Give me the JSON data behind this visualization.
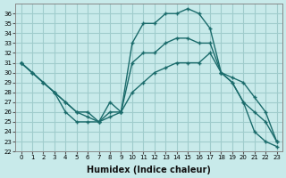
{
  "xlabel": "Humidex (Indice chaleur)",
  "bg_color": "#c8eaea",
  "grid_color": "#a0cccc",
  "line_color": "#1a6b6b",
  "xlim": [
    -0.5,
    23.5
  ],
  "ylim": [
    22,
    37
  ],
  "xticks": [
    0,
    1,
    2,
    3,
    4,
    5,
    6,
    7,
    8,
    9,
    10,
    11,
    12,
    13,
    14,
    15,
    16,
    17,
    18,
    19,
    20,
    21,
    22,
    23
  ],
  "yticks": [
    22,
    23,
    24,
    25,
    26,
    27,
    28,
    29,
    30,
    31,
    32,
    33,
    34,
    35,
    36
  ],
  "line1_x": [
    0,
    1,
    2,
    3,
    4,
    5,
    6,
    7,
    8,
    9,
    10,
    11,
    12,
    13,
    14,
    15,
    16,
    17,
    18,
    19,
    20,
    21,
    22,
    23
  ],
  "line1_y": [
    31,
    30,
    29,
    28,
    26,
    25,
    25,
    25,
    27,
    26,
    33,
    35,
    35,
    36,
    36,
    36.5,
    36,
    34.5,
    30,
    29,
    27,
    24,
    23,
    22.5
  ],
  "line2_x": [
    0,
    1,
    2,
    3,
    4,
    5,
    6,
    7,
    8,
    9,
    10,
    11,
    12,
    13,
    14,
    15,
    16,
    17,
    18,
    19,
    20,
    21,
    22,
    23
  ],
  "line2_y": [
    31,
    30,
    29,
    28,
    27,
    26,
    26,
    25,
    26,
    26,
    31,
    32,
    32,
    33,
    33.5,
    33.5,
    33,
    33,
    30,
    29,
    27,
    26,
    25,
    23
  ],
  "line3_x": [
    0,
    1,
    2,
    3,
    4,
    5,
    6,
    7,
    8,
    9,
    10,
    11,
    12,
    13,
    14,
    15,
    16,
    17,
    18,
    19,
    20,
    21,
    22,
    23
  ],
  "line3_y": [
    31,
    30,
    29,
    28,
    27,
    26,
    25.5,
    25,
    25.5,
    26,
    28,
    29,
    30,
    30.5,
    31,
    31,
    31,
    32,
    30,
    29.5,
    29,
    27.5,
    26,
    23
  ]
}
